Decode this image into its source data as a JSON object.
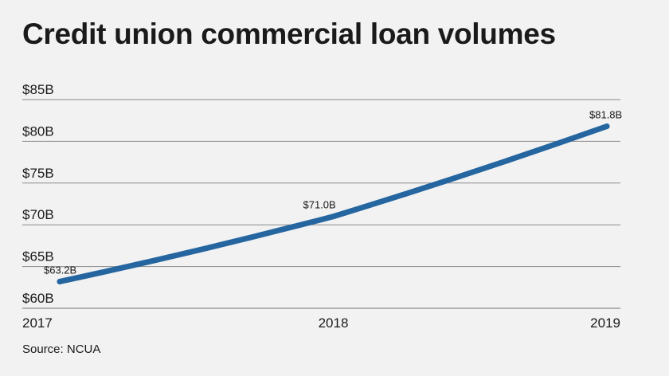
{
  "chart_data": {
    "type": "line",
    "title": "Credit union commercial loan volumes",
    "categories": [
      "2017",
      "2018",
      "2019"
    ],
    "series": [
      {
        "values": [
          63.2,
          71.0,
          81.8
        ],
        "labels": [
          "$63.2B",
          "$71.0B",
          "$81.8B"
        ],
        "color": "#2566a0"
      }
    ],
    "ylim": [
      60,
      85
    ],
    "yticks": [
      60,
      65,
      70,
      75,
      80,
      85
    ],
    "ytick_labels": [
      "$60B",
      "$65B",
      "$70B",
      "$75B",
      "$80B",
      "$85B"
    ],
    "grid": true,
    "xlabel": "",
    "ylabel": ""
  },
  "source": "Source: NCUA",
  "colors": {
    "background": "#f2f2f2",
    "grid": "#8a8a8a",
    "line": "#2566a0"
  }
}
